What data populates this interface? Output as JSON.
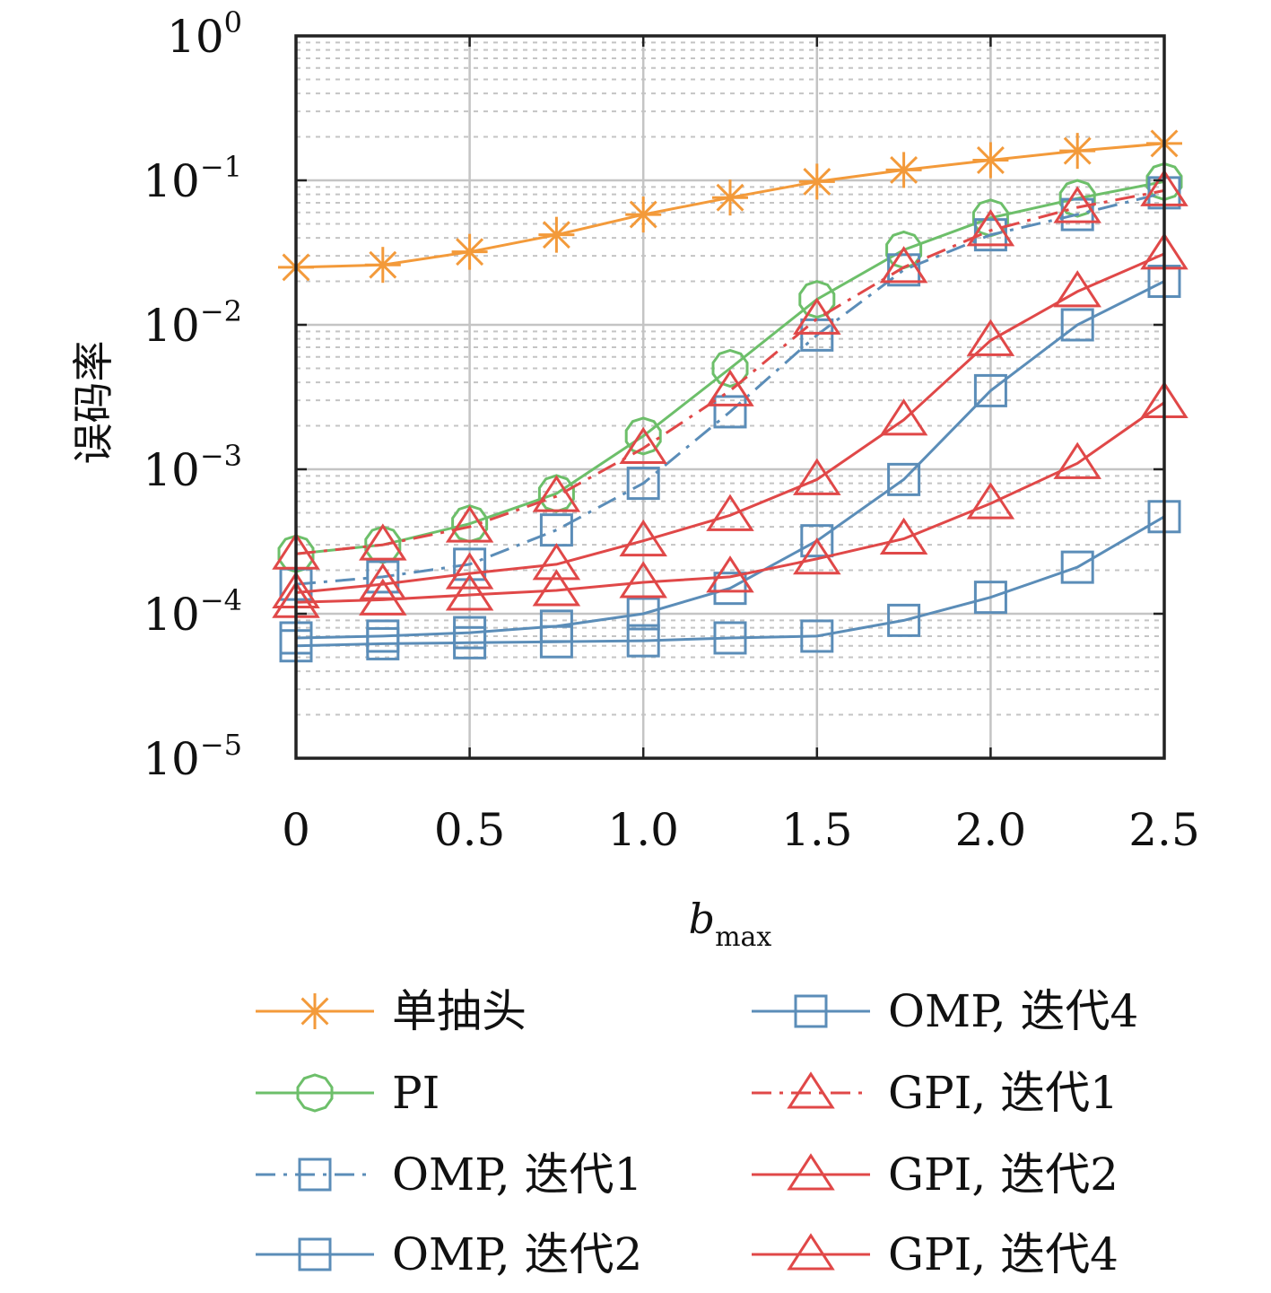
{
  "chart_data": {
    "type": "line",
    "title": "",
    "xlabel": "b",
    "xlabel_sub": "max",
    "ylabel": "误码率",
    "x": [
      0,
      0.25,
      0.5,
      0.75,
      1.0,
      1.25,
      1.5,
      1.75,
      2.0,
      2.25,
      2.5
    ],
    "xlim": [
      0,
      2.5
    ],
    "ylim": [
      1e-05,
      1
    ],
    "y_scale": "log",
    "grid": true,
    "minor_grid": true,
    "legend_position": "below",
    "x_ticks": [
      {
        "value": 0,
        "label": "0"
      },
      {
        "value": 0.5,
        "label": "0.5"
      },
      {
        "value": 1.0,
        "label": "1.0"
      },
      {
        "value": 1.5,
        "label": "1.5"
      },
      {
        "value": 2.0,
        "label": "2.0"
      },
      {
        "value": 2.5,
        "label": "2.5"
      }
    ],
    "y_ticks": [
      {
        "value": 1,
        "base": "10",
        "exp": "0"
      },
      {
        "value": 0.1,
        "base": "10",
        "exp": "−1"
      },
      {
        "value": 0.01,
        "base": "10",
        "exp": "−2"
      },
      {
        "value": 0.001,
        "base": "10",
        "exp": "−3"
      },
      {
        "value": 0.0001,
        "base": "10",
        "exp": "−4"
      },
      {
        "value": 1e-05,
        "base": "10",
        "exp": "−5"
      }
    ],
    "series": [
      {
        "name": "单抽头",
        "color": "#f39a3a",
        "marker": "star",
        "dash": "solid",
        "values": [
          0.025,
          0.026,
          0.032,
          0.042,
          0.058,
          0.076,
          0.098,
          0.118,
          0.138,
          0.16,
          0.18
        ]
      },
      {
        "name": "PI",
        "color": "#6dbf6a",
        "marker": "circle",
        "dash": "solid",
        "values": [
          0.00026,
          0.0003,
          0.00042,
          0.00068,
          0.0017,
          0.005,
          0.015,
          0.033,
          0.055,
          0.075,
          0.098
        ]
      },
      {
        "name": "OMP, 迭代1",
        "color": "#5b8db8",
        "marker": "square",
        "dash": "dashdot",
        "values": [
          0.00016,
          0.00018,
          0.00022,
          0.00038,
          0.0008,
          0.0025,
          0.0085,
          0.024,
          0.042,
          0.058,
          0.082
        ]
      },
      {
        "name": "OMP, 迭代2",
        "color": "#5b8db8",
        "marker": "square",
        "dash": "solid",
        "values": [
          6.8e-05,
          7e-05,
          7.4e-05,
          8.2e-05,
          0.0001,
          0.00015,
          0.00032,
          0.00085,
          0.0035,
          0.01,
          0.02
        ]
      },
      {
        "name": "OMP, 迭代4",
        "color": "#5b8db8",
        "marker": "square",
        "dash": "solid",
        "values": [
          6e-05,
          6.2e-05,
          6.3e-05,
          6.4e-05,
          6.5e-05,
          6.8e-05,
          7e-05,
          9e-05,
          0.00013,
          0.00021,
          0.00047
        ]
      },
      {
        "name": "GPI, 迭代1",
        "color": "#e04848",
        "marker": "triangle",
        "dash": "dashdot",
        "values": [
          0.00026,
          0.0003,
          0.0004,
          0.00065,
          0.0014,
          0.0035,
          0.011,
          0.025,
          0.045,
          0.065,
          0.085
        ]
      },
      {
        "name": "GPI, 迭代2",
        "color": "#e04848",
        "marker": "triangle",
        "dash": "solid",
        "values": [
          0.00014,
          0.00016,
          0.00019,
          0.00022,
          0.00032,
          0.00048,
          0.00085,
          0.0022,
          0.0078,
          0.017,
          0.031
        ]
      },
      {
        "name": "GPI, 迭代4",
        "color": "#e04848",
        "marker": "triangle",
        "dash": "solid",
        "values": [
          0.00012,
          0.000125,
          0.000135,
          0.000145,
          0.000165,
          0.00018,
          0.00024,
          0.00033,
          0.00058,
          0.0011,
          0.0029
        ]
      }
    ]
  }
}
